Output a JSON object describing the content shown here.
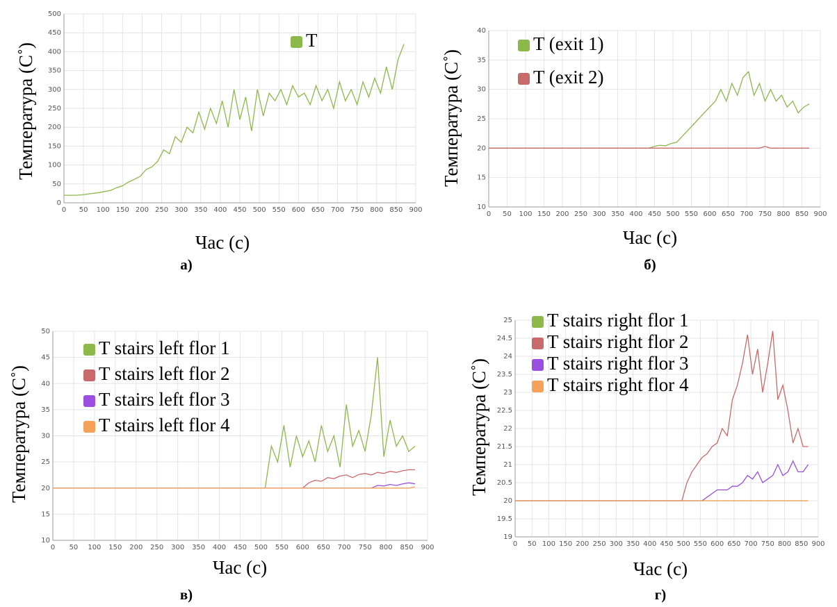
{
  "chart_data": [
    {
      "type": "line",
      "caption": "а)",
      "x_label": "Час (с)",
      "y_label": "Температура (C˚)",
      "legend": "top",
      "grid": true,
      "x": [
        0,
        15,
        30,
        45,
        60,
        75,
        90,
        105,
        120,
        135,
        150,
        165,
        180,
        195,
        210,
        225,
        240,
        255,
        270,
        285,
        300,
        315,
        330,
        345,
        360,
        375,
        390,
        405,
        420,
        435,
        450,
        465,
        480,
        495,
        510,
        525,
        540,
        555,
        570,
        585,
        600,
        615,
        630,
        645,
        660,
        675,
        690,
        705,
        720,
        735,
        750,
        765,
        780,
        795,
        810,
        825,
        840,
        855,
        870
      ],
      "series": [
        {
          "name": "T",
          "color": "#8db84a",
          "values": [
            20,
            20,
            20,
            21,
            23,
            25,
            27,
            30,
            33,
            40,
            45,
            55,
            62,
            70,
            88,
            95,
            110,
            140,
            130,
            175,
            160,
            200,
            185,
            240,
            195,
            250,
            210,
            270,
            200,
            300,
            220,
            280,
            190,
            300,
            230,
            290,
            270,
            300,
            260,
            310,
            280,
            290,
            260,
            310,
            270,
            300,
            250,
            320,
            270,
            300,
            260,
            320,
            280,
            330,
            290,
            360,
            300,
            380,
            420
          ]
        }
      ],
      "xlim": [
        0,
        900
      ],
      "xticks": [
        0,
        50,
        100,
        150,
        200,
        250,
        300,
        350,
        400,
        450,
        500,
        550,
        600,
        650,
        700,
        750,
        800,
        850,
        900
      ],
      "ylim": [
        0,
        500
      ],
      "yticks": [
        0,
        50,
        100,
        150,
        200,
        250,
        300,
        350,
        400,
        450,
        500
      ]
    },
    {
      "type": "line",
      "caption": "б)",
      "x_label": "Час (с)",
      "y_label": "Температура (C˚)",
      "legend": "top-left",
      "grid": true,
      "x": [
        0,
        15,
        30,
        45,
        60,
        75,
        90,
        105,
        120,
        135,
        150,
        165,
        180,
        195,
        210,
        225,
        240,
        255,
        270,
        285,
        300,
        315,
        330,
        345,
        360,
        375,
        390,
        405,
        420,
        435,
        450,
        465,
        480,
        495,
        510,
        525,
        540,
        555,
        570,
        585,
        600,
        615,
        630,
        645,
        660,
        675,
        690,
        705,
        720,
        735,
        750,
        765,
        780,
        795,
        810,
        825,
        840,
        855,
        870
      ],
      "series": [
        {
          "name": "T (exit 1)",
          "color": "#8db84a",
          "values": [
            20,
            20,
            20,
            20,
            20,
            20,
            20,
            20,
            20,
            20,
            20,
            20,
            20,
            20,
            20,
            20,
            20,
            20,
            20,
            20,
            20,
            20,
            20,
            20,
            20,
            20,
            20,
            20,
            20,
            20,
            20.3,
            20.5,
            20.4,
            20.8,
            21,
            22,
            23,
            24,
            25,
            26,
            27,
            28,
            30,
            28,
            31,
            29,
            32,
            33,
            29,
            31,
            28,
            30,
            28,
            29,
            27,
            28,
            26,
            27,
            27.5
          ]
        },
        {
          "name": "T (exit 2)",
          "color": "#c86a6a",
          "values": [
            20,
            20,
            20,
            20,
            20,
            20,
            20,
            20,
            20,
            20,
            20,
            20,
            20,
            20,
            20,
            20,
            20,
            20,
            20,
            20,
            20,
            20,
            20,
            20,
            20,
            20,
            20,
            20,
            20,
            20,
            20,
            20,
            20,
            20,
            20,
            20,
            20,
            20,
            20,
            20,
            20,
            20,
            20,
            20,
            20,
            20,
            20,
            20,
            20,
            20,
            20.3,
            20,
            20,
            20,
            20,
            20,
            20,
            20,
            20
          ]
        }
      ],
      "xlim": [
        0,
        900
      ],
      "xticks": [
        0,
        50,
        100,
        150,
        200,
        250,
        300,
        350,
        400,
        450,
        500,
        550,
        600,
        650,
        700,
        750,
        800,
        850,
        900
      ],
      "ylim": [
        10,
        40
      ],
      "yticks": [
        10,
        15,
        20,
        25,
        30,
        35,
        40
      ]
    },
    {
      "type": "line",
      "caption": "в)",
      "x_label": "Час (с)",
      "y_label": "Температура (C˚)",
      "legend": "top-left",
      "grid": true,
      "x": [
        0,
        15,
        30,
        45,
        60,
        75,
        90,
        105,
        120,
        135,
        150,
        165,
        180,
        195,
        210,
        225,
        240,
        255,
        270,
        285,
        300,
        315,
        330,
        345,
        360,
        375,
        390,
        405,
        420,
        435,
        450,
        465,
        480,
        495,
        510,
        525,
        540,
        555,
        570,
        585,
        600,
        615,
        630,
        645,
        660,
        675,
        690,
        705,
        720,
        735,
        750,
        765,
        780,
        795,
        810,
        825,
        840,
        855,
        870
      ],
      "series": [
        {
          "name": "T stairs left flor 1",
          "color": "#8db84a",
          "values": [
            20,
            20,
            20,
            20,
            20,
            20,
            20,
            20,
            20,
            20,
            20,
            20,
            20,
            20,
            20,
            20,
            20,
            20,
            20,
            20,
            20,
            20,
            20,
            20,
            20,
            20,
            20,
            20,
            20,
            20,
            20,
            20,
            20,
            20,
            20,
            28,
            25,
            32,
            24,
            30,
            26,
            29,
            25,
            32,
            27,
            30,
            24,
            36,
            28,
            31,
            27,
            34,
            45,
            26,
            33,
            28,
            30,
            27,
            28
          ]
        },
        {
          "name": "T stairs left flor 2",
          "color": "#c86a6a",
          "values": [
            20,
            20,
            20,
            20,
            20,
            20,
            20,
            20,
            20,
            20,
            20,
            20,
            20,
            20,
            20,
            20,
            20,
            20,
            20,
            20,
            20,
            20,
            20,
            20,
            20,
            20,
            20,
            20,
            20,
            20,
            20,
            20,
            20,
            20,
            20,
            20,
            20,
            20,
            20,
            20,
            20,
            21,
            21.5,
            21.3,
            22,
            21.8,
            22.3,
            22.5,
            22,
            22.6,
            22.8,
            22.5,
            23,
            22.8,
            23.2,
            23,
            23.3,
            23.5,
            23.5
          ]
        },
        {
          "name": "T stairs left flor 3",
          "color": "#9a4fe0",
          "values": [
            20,
            20,
            20,
            20,
            20,
            20,
            20,
            20,
            20,
            20,
            20,
            20,
            20,
            20,
            20,
            20,
            20,
            20,
            20,
            20,
            20,
            20,
            20,
            20,
            20,
            20,
            20,
            20,
            20,
            20,
            20,
            20,
            20,
            20,
            20,
            20,
            20,
            20,
            20,
            20,
            20,
            20,
            20,
            20,
            20,
            20,
            20,
            20,
            20,
            20,
            20,
            20,
            20.5,
            20.4,
            20.7,
            20.5,
            20.8,
            21,
            20.8
          ]
        },
        {
          "name": "T stairs left flor 4",
          "color": "#f5a35a",
          "values": [
            20,
            20,
            20,
            20,
            20,
            20,
            20,
            20,
            20,
            20,
            20,
            20,
            20,
            20,
            20,
            20,
            20,
            20,
            20,
            20,
            20,
            20,
            20,
            20,
            20,
            20,
            20,
            20,
            20,
            20,
            20,
            20,
            20,
            20,
            20,
            20,
            20,
            20,
            20,
            20,
            20,
            20,
            20,
            20,
            20,
            20,
            20,
            20,
            20,
            20,
            20,
            20,
            20,
            20,
            20,
            20,
            20,
            20,
            20.2
          ]
        }
      ],
      "xlim": [
        0,
        900
      ],
      "xticks": [
        0,
        50,
        100,
        150,
        200,
        250,
        300,
        350,
        400,
        450,
        500,
        550,
        600,
        650,
        700,
        750,
        800,
        850,
        900
      ],
      "ylim": [
        10,
        50
      ],
      "yticks": [
        10,
        15,
        20,
        25,
        30,
        35,
        40,
        45,
        50
      ]
    },
    {
      "type": "line",
      "caption": "г)",
      "x_label": "Час (с)",
      "y_label": "Температура (C˚)",
      "legend": "top-left",
      "grid": true,
      "x": [
        0,
        15,
        30,
        45,
        60,
        75,
        90,
        105,
        120,
        135,
        150,
        165,
        180,
        195,
        210,
        225,
        240,
        255,
        270,
        285,
        300,
        315,
        330,
        345,
        360,
        375,
        390,
        405,
        420,
        435,
        450,
        465,
        480,
        495,
        510,
        525,
        540,
        555,
        570,
        585,
        600,
        615,
        630,
        645,
        660,
        675,
        690,
        705,
        720,
        735,
        750,
        765,
        780,
        795,
        810,
        825,
        840,
        855,
        870
      ],
      "series": [
        {
          "name": "T stairs right flor 1",
          "color": "#8db84a",
          "values": [
            20,
            20,
            20,
            20,
            20,
            20,
            20,
            20,
            20,
            20,
            20,
            20,
            20,
            20,
            20,
            20,
            20,
            20,
            20,
            20,
            20,
            20,
            20,
            20,
            20,
            20,
            20,
            20,
            20,
            20,
            20,
            20,
            20,
            20,
            20,
            20,
            20,
            20,
            20,
            20,
            20,
            20,
            20,
            20,
            20,
            20,
            20,
            20,
            20,
            20,
            20,
            20,
            20,
            20,
            20,
            20,
            20,
            20,
            20
          ]
        },
        {
          "name": "T stairs right flor 2",
          "color": "#c86a6a",
          "values": [
            20,
            20,
            20,
            20,
            20,
            20,
            20,
            20,
            20,
            20,
            20,
            20,
            20,
            20,
            20,
            20,
            20,
            20,
            20,
            20,
            20,
            20,
            20,
            20,
            20,
            20,
            20,
            20,
            20,
            20,
            20,
            20,
            20,
            20,
            20.5,
            20.8,
            21,
            21.2,
            21.3,
            21.5,
            21.6,
            22,
            21.8,
            22.8,
            23.2,
            23.8,
            24.6,
            23.5,
            24.2,
            23,
            23.8,
            24.7,
            22.8,
            23.2,
            22.5,
            21.6,
            22,
            21.5,
            21.5
          ]
        },
        {
          "name": "T stairs right flor 3",
          "color": "#9a4fe0",
          "values": [
            20,
            20,
            20,
            20,
            20,
            20,
            20,
            20,
            20,
            20,
            20,
            20,
            20,
            20,
            20,
            20,
            20,
            20,
            20,
            20,
            20,
            20,
            20,
            20,
            20,
            20,
            20,
            20,
            20,
            20,
            20,
            20,
            20,
            20,
            20,
            20,
            20,
            20,
            20.1,
            20.2,
            20.3,
            20.3,
            20.3,
            20.4,
            20.4,
            20.5,
            20.7,
            20.6,
            20.8,
            20.5,
            20.6,
            20.7,
            21,
            20.7,
            20.8,
            21.1,
            20.8,
            20.8,
            21
          ]
        },
        {
          "name": "T stairs right flor 4",
          "color": "#f5a35a",
          "values": [
            20,
            20,
            20,
            20,
            20,
            20,
            20,
            20,
            20,
            20,
            20,
            20,
            20,
            20,
            20,
            20,
            20,
            20,
            20,
            20,
            20,
            20,
            20,
            20,
            20,
            20,
            20,
            20,
            20,
            20,
            20,
            20,
            20,
            20,
            20,
            20,
            20,
            20,
            20,
            20,
            20,
            20,
            20,
            20,
            20,
            20,
            20,
            20,
            20,
            20,
            20,
            20,
            20,
            20,
            20,
            20,
            20,
            20,
            20
          ]
        }
      ],
      "xlim": [
        0,
        900
      ],
      "xticks": [
        0,
        50,
        100,
        150,
        200,
        250,
        300,
        350,
        400,
        450,
        500,
        550,
        600,
        650,
        700,
        750,
        800,
        850,
        900
      ],
      "ylim": [
        19,
        25
      ],
      "yticks": [
        19,
        19.5,
        20,
        20.5,
        21,
        21.5,
        22,
        22.5,
        23,
        23.5,
        24,
        24.5,
        25
      ]
    }
  ]
}
